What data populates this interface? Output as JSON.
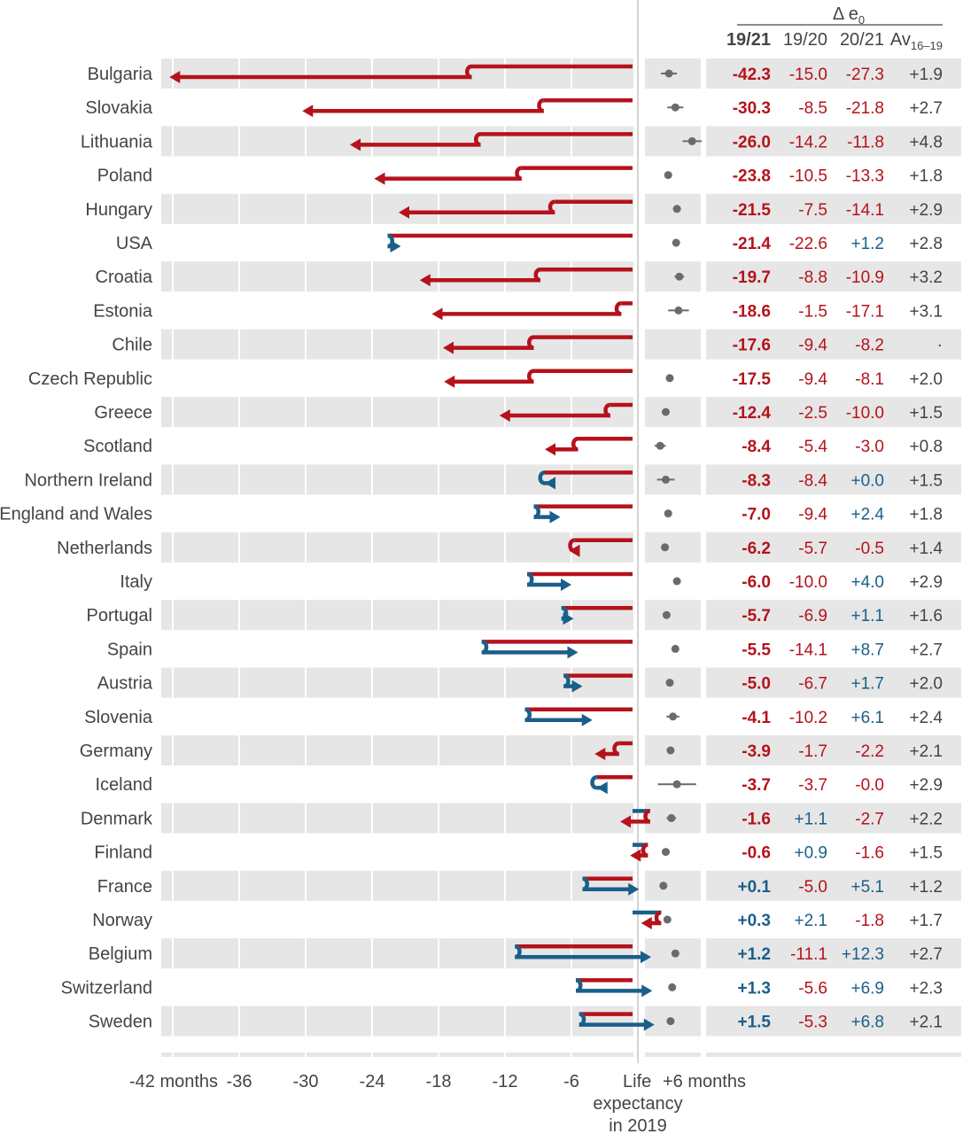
{
  "chart_data": {
    "type": "arrow-bar-table",
    "header": {
      "title": "Δ e",
      "title_sub": "0",
      "columns": [
        "19/21",
        "19/20",
        "20/21",
        "Av"
      ],
      "av_sub": "16–19"
    },
    "x_axis": {
      "tick_labels": [
        "-42 months",
        "-36",
        "-30",
        "-24",
        "-18",
        "-12",
        "-6",
        "+6 months"
      ],
      "tick_values": [
        -42,
        -36,
        -30,
        -24,
        -18,
        -12,
        -6,
        6
      ],
      "center_label": [
        "Life",
        "expectancy",
        "in 2019"
      ],
      "units": "months",
      "range": [
        -43,
        6
      ]
    },
    "colors": {
      "decline": "#b5121b",
      "gain": "#1a5f8a",
      "band": "#e6e6e6",
      "dot": "#6b6b6b",
      "text": "#444444"
    },
    "rows": [
      {
        "country": "Bulgaria",
        "d1921": "-42.3",
        "d1920": "-15.0",
        "d2021": "-27.3",
        "av": "+1.9",
        "v1920": -15.0,
        "v2021": -27.3,
        "av_val": 1.9,
        "ci": 1.0
      },
      {
        "country": "Slovakia",
        "d1921": "-30.3",
        "d1920": "-8.5",
        "d2021": "-21.8",
        "av": "+2.7",
        "v1920": -8.5,
        "v2021": -21.8,
        "av_val": 2.7,
        "ci": 1.0
      },
      {
        "country": "Lithuania",
        "d1921": "-26.0",
        "d1920": "-14.2",
        "d2021": "-11.8",
        "av": "+4.8",
        "v1920": -14.2,
        "v2021": -11.8,
        "av_val": 4.8,
        "ci": 1.2
      },
      {
        "country": "Poland",
        "d1921": "-23.8",
        "d1920": "-10.5",
        "d2021": "-13.3",
        "av": "+1.8",
        "v1920": -10.5,
        "v2021": -13.3,
        "av_val": 1.8,
        "ci": 0.3
      },
      {
        "country": "Hungary",
        "d1921": "-21.5",
        "d1920": "-7.5",
        "d2021": "-14.1",
        "av": "+2.9",
        "v1920": -7.5,
        "v2021": -14.1,
        "av_val": 2.9,
        "ci": 0.5
      },
      {
        "country": "USA",
        "d1921": "-21.4",
        "d1920": "-22.6",
        "d2021": "+1.2",
        "av": "+2.8",
        "v1920": -22.6,
        "v2021": 1.2,
        "av_val": 2.8,
        "ci": 0.3
      },
      {
        "country": "Croatia",
        "d1921": "-19.7",
        "d1920": "-8.8",
        "d2021": "-10.9",
        "av": "+3.2",
        "v1920": -8.8,
        "v2021": -10.9,
        "av_val": 3.2,
        "ci": 0.6
      },
      {
        "country": "Estonia",
        "d1921": "-18.6",
        "d1920": "-1.5",
        "d2021": "-17.1",
        "av": "+3.1",
        "v1920": -1.5,
        "v2021": -17.1,
        "av_val": 3.1,
        "ci": 1.3
      },
      {
        "country": "Chile",
        "d1921": "-17.6",
        "d1920": "-9.4",
        "d2021": "-8.2",
        "av": "·",
        "v1920": -9.4,
        "v2021": -8.2,
        "av_val": null,
        "ci": 0
      },
      {
        "country": "Czech Republic",
        "d1921": "-17.5",
        "d1920": "-9.4",
        "d2021": "-8.1",
        "av": "+2.0",
        "v1920": -9.4,
        "v2021": -8.1,
        "av_val": 2.0,
        "ci": 0.3
      },
      {
        "country": "Greece",
        "d1921": "-12.4",
        "d1920": "-2.5",
        "d2021": "-10.0",
        "av": "+1.5",
        "v1920": -2.5,
        "v2021": -10.0,
        "av_val": 1.5,
        "ci": 0.4
      },
      {
        "country": "Scotland",
        "d1921": "-8.4",
        "d1920": "-5.4",
        "d2021": "-3.0",
        "av": "+0.8",
        "v1920": -5.4,
        "v2021": -3.0,
        "av_val": 0.8,
        "ci": 0.7
      },
      {
        "country": "Northern Ireland",
        "d1921": "-8.3",
        "d1920": "-8.4",
        "d2021": "+0.0",
        "av": "+1.5",
        "v1920": -8.4,
        "v2021": 0.0,
        "av_val": 1.5,
        "ci": 1.1
      },
      {
        "country": "England and Wales",
        "d1921": "-7.0",
        "d1920": "-9.4",
        "d2021": "+2.4",
        "av": "+1.8",
        "v1920": -9.4,
        "v2021": 2.4,
        "av_val": 1.8,
        "ci": 0.2
      },
      {
        "country": "Netherlands",
        "d1921": "-6.2",
        "d1920": "-5.7",
        "d2021": "-0.5",
        "av": "+1.4",
        "v1920": -5.7,
        "v2021": -0.5,
        "av_val": 1.4,
        "ci": 0.2
      },
      {
        "country": "Italy",
        "d1921": "-6.0",
        "d1920": "-10.0",
        "d2021": "+4.0",
        "av": "+2.9",
        "v1920": -10.0,
        "v2021": 4.0,
        "av_val": 2.9,
        "ci": 0.2
      },
      {
        "country": "Portugal",
        "d1921": "-5.7",
        "d1920": "-6.9",
        "d2021": "+1.1",
        "av": "+1.6",
        "v1920": -6.9,
        "v2021": 1.1,
        "av_val": 1.6,
        "ci": 0.4
      },
      {
        "country": "Spain",
        "d1921": "-5.5",
        "d1920": "-14.1",
        "d2021": "+8.7",
        "av": "+2.7",
        "v1920": -14.1,
        "v2021": 8.7,
        "av_val": 2.7,
        "ci": 0.2
      },
      {
        "country": "Austria",
        "d1921": "-5.0",
        "d1920": "-6.7",
        "d2021": "+1.7",
        "av": "+2.0",
        "v1920": -6.7,
        "v2021": 1.7,
        "av_val": 2.0,
        "ci": 0.4
      },
      {
        "country": "Slovenia",
        "d1921": "-4.1",
        "d1920": "-10.2",
        "d2021": "+6.1",
        "av": "+2.4",
        "v1920": -10.2,
        "v2021": 6.1,
        "av_val": 2.4,
        "ci": 0.8
      },
      {
        "country": "Germany",
        "d1921": "-3.9",
        "d1920": "-1.7",
        "d2021": "-2.2",
        "av": "+2.1",
        "v1920": -1.7,
        "v2021": -2.2,
        "av_val": 2.1,
        "ci": 0.2
      },
      {
        "country": "Iceland",
        "d1921": "-3.7",
        "d1920": "-3.7",
        "d2021": "-0.0",
        "av": "+2.9",
        "v1920": -3.7,
        "v2021": 0.0,
        "av_val": 2.9,
        "ci": 2.4
      },
      {
        "country": "Denmark",
        "d1921": "-1.6",
        "d1920": "+1.1",
        "d2021": "-2.7",
        "av": "+2.2",
        "v1920": 1.1,
        "v2021": -2.7,
        "av_val": 2.2,
        "ci": 0.6
      },
      {
        "country": "Finland",
        "d1921": "-0.6",
        "d1920": "+0.9",
        "d2021": "-1.6",
        "av": "+1.5",
        "v1920": 0.9,
        "v2021": -1.6,
        "av_val": 1.5,
        "ci": 0.5
      },
      {
        "country": "France",
        "d1921": "+0.1",
        "d1920": "-5.0",
        "d2021": "+5.1",
        "av": "+1.2",
        "v1920": -5.0,
        "v2021": 5.1,
        "av_val": 1.2,
        "ci": 0.2
      },
      {
        "country": "Norway",
        "d1921": "+0.3",
        "d1920": "+2.1",
        "d2021": "-1.8",
        "av": "+1.7",
        "v1920": 2.1,
        "v2021": -1.8,
        "av_val": 1.7,
        "ci": 0.3
      },
      {
        "country": "Belgium",
        "d1921": "+1.2",
        "d1920": "-11.1",
        "d2021": "+12.3",
        "av": "+2.7",
        "v1920": -11.1,
        "v2021": 12.3,
        "av_val": 2.7,
        "ci": 0.3
      },
      {
        "country": "Switzerland",
        "d1921": "+1.3",
        "d1920": "-5.6",
        "d2021": "+6.9",
        "av": "+2.3",
        "v1920": -5.6,
        "v2021": 6.9,
        "av_val": 2.3,
        "ci": 0.4
      },
      {
        "country": "Sweden",
        "d1921": "+1.5",
        "d1920": "-5.3",
        "d2021": "+6.8",
        "av": "+2.1",
        "v1920": -5.3,
        "v2021": 6.8,
        "av_val": 2.1,
        "ci": 0.3
      }
    ]
  }
}
